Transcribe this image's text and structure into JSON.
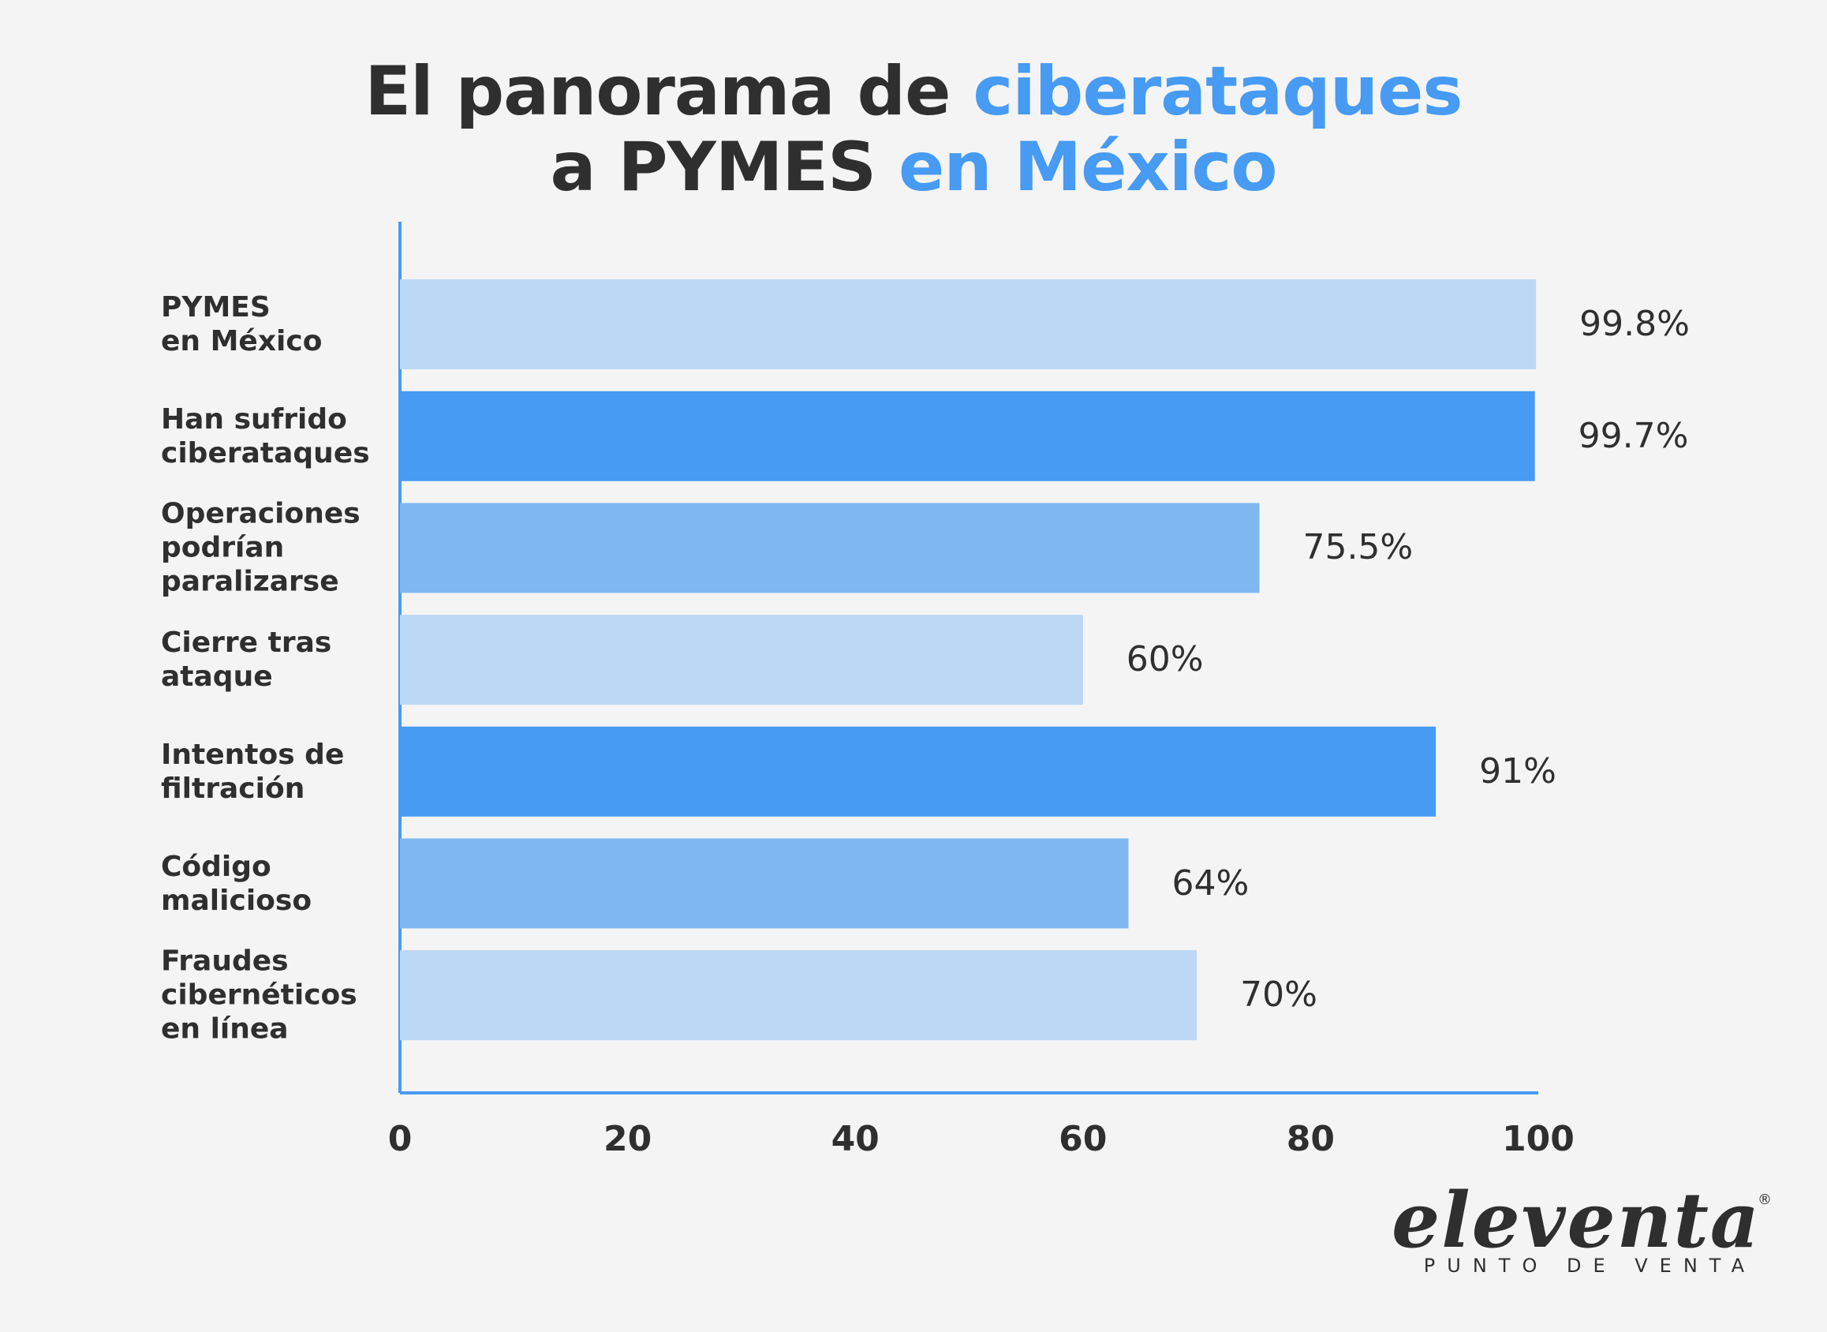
{
  "chart_data": {
    "type": "bar",
    "orientation": "horizontal",
    "title_lines": [
      [
        {
          "text": "El panorama de ",
          "color": "#2f2f2f"
        },
        {
          "text": "ciberataques",
          "color": "#479bf2"
        }
      ],
      [
        {
          "text": "a PYMES ",
          "color": "#2f2f2f"
        },
        {
          "text": "en México",
          "color": "#479bf2"
        }
      ]
    ],
    "categories": [
      "PYMES\nen México",
      "Han sufrido\nciberataques",
      "Operaciones\npodrían\nparalizarse",
      "Cierre tras\nataque",
      "Intentos de\nfiltración",
      "Código\nmalicioso",
      "Fraudes\ncibernéticos\nen línea"
    ],
    "values": [
      99.8,
      99.7,
      75.5,
      60,
      91,
      64,
      70
    ],
    "value_labels": [
      "99.8%",
      "99.7%",
      "75.5%",
      "60%",
      "91%",
      "64%",
      "70%"
    ],
    "colors": [
      "#bcd7f3",
      "#479bf2",
      "#7fb8f0",
      "#bcd7f3",
      "#479bf2",
      "#7fb8f0",
      "#bcd7f3"
    ],
    "axis_color": "#479bf2",
    "xlim": [
      0,
      100
    ],
    "xticks": [
      0,
      20,
      40,
      60,
      80,
      100
    ],
    "grid": false,
    "logo": {
      "name": "eleventa",
      "mark": "®",
      "tagline": "PUNTO DE VENTA"
    }
  }
}
